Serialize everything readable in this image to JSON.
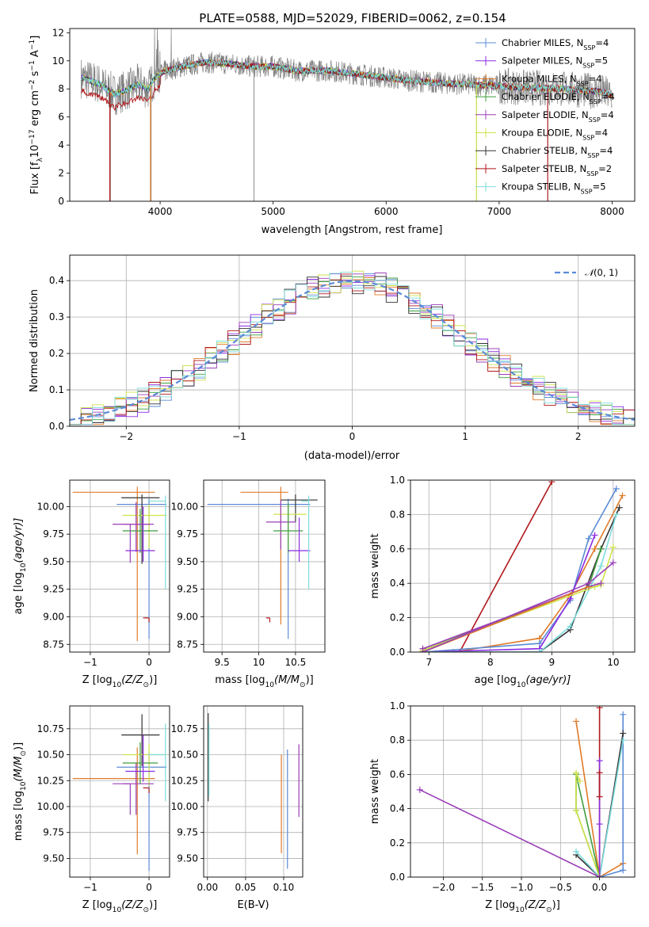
{
  "title": "PLATE=0588, MJD=52029, FIBERID=0062, z=0.154",
  "colors": {
    "Chabrier MILES": "#5b8bd6",
    "Salpeter MILES": "#8a2be2",
    "Kroupa MILES": "#e07b28",
    "Chabrier ELODIE": "#3e9e3e",
    "Salpeter ELODIE": "#9b3fb8",
    "Kroupa ELODIE": "#cfe34a",
    "Chabrier STELIB": "#333333",
    "Salpeter STELIB": "#b0181c",
    "Kroupa STELIB": "#7fdcdc",
    "data": "#808080",
    "normal": "#5b8bd6"
  },
  "chart_data": [
    {
      "id": "spectrum",
      "type": "line",
      "xlabel": "wavelength [Angstrom, rest frame]",
      "ylabel_parts": {
        "a": "Flux [f",
        "b": "λ",
        "c": "10",
        "d": "−17",
        "e": " erg cm",
        "f": "−2",
        "g": " s",
        "h": "−1",
        "i": " A",
        "j": "−1",
        "k": "]"
      },
      "xlim": [
        3200,
        8200
      ],
      "ylim": [
        0,
        12.3
      ],
      "xticks": [
        4000,
        5000,
        6000,
        7000,
        8000
      ],
      "yticks": [
        0,
        2,
        4,
        6,
        8,
        10,
        12
      ],
      "legend": [
        {
          "name": "Chabrier MILES",
          "nssp": "4"
        },
        {
          "name": "Salpeter MILES",
          "nssp": "5"
        },
        {
          "name": "Kroupa MILES",
          "nssp": "4"
        },
        {
          "name": "Chabrier ELODIE",
          "nssp": "4"
        },
        {
          "name": "Salpeter ELODIE",
          "nssp": "4"
        },
        {
          "name": "Kroupa ELODIE",
          "nssp": "4"
        },
        {
          "name": "Chabrier STELIB",
          "nssp": "4"
        },
        {
          "name": "Salpeter STELIB",
          "nssp": "2"
        },
        {
          "name": "Kroupa STELIB",
          "nssp": "5"
        }
      ],
      "legend_nssp_prefix": "N",
      "legend_nssp_sub": "SSP",
      "legend_eq": "=",
      "continuum": [
        [
          3300,
          8.8
        ],
        [
          3450,
          8.4
        ],
        [
          3600,
          7.6
        ],
        [
          3700,
          7.9
        ],
        [
          3800,
          8.3
        ],
        [
          3900,
          8.0
        ],
        [
          3950,
          8.8
        ],
        [
          4050,
          9.3
        ],
        [
          4200,
          9.6
        ],
        [
          4400,
          9.9
        ],
        [
          4600,
          9.8
        ],
        [
          4800,
          9.6
        ],
        [
          5000,
          9.6
        ],
        [
          5200,
          9.3
        ],
        [
          5500,
          9.3
        ],
        [
          5800,
          9.0
        ],
        [
          6200,
          8.6
        ],
        [
          6500,
          8.4
        ],
        [
          6800,
          8.3
        ],
        [
          7200,
          8.1
        ],
        [
          7600,
          8.0
        ],
        [
          7900,
          7.8
        ],
        [
          8000,
          7.5
        ]
      ]
    },
    {
      "id": "residuals",
      "type": "step",
      "xlabel": "(data-model)/error",
      "ylabel": "Normed distribution",
      "xlim": [
        -2.5,
        2.5
      ],
      "ylim": [
        0,
        0.47
      ],
      "xticks": [
        -2,
        -1,
        0,
        1,
        2
      ],
      "yticks": [
        0.0,
        0.1,
        0.2,
        0.3,
        0.4
      ],
      "legend": "N(0,1)",
      "legend_parts": {
        "a": "𝒩",
        "b": "(0, 1)"
      },
      "bin_width": 0.1
    },
    {
      "id": "age-Z",
      "type": "errorbar",
      "xlabel_parts": {
        "a": "Z [log",
        "b": "10",
        "c": "(Z/Z",
        "d": "⊙",
        "e": ")]"
      },
      "ylabel_parts": {
        "a": "age  [log",
        "b": "10",
        "c": "(age/yr)]"
      },
      "xlim": [
        -1.35,
        0.35
      ],
      "ylim": [
        8.68,
        10.24
      ],
      "xticks": [
        -1,
        0
      ],
      "yticks": [
        8.75,
        9.0,
        9.25,
        9.5,
        9.75,
        10.0
      ],
      "points": [
        {
          "model": "Kroupa MILES",
          "x": -0.2,
          "xerr": [
            1.1,
            0.3
          ],
          "y": 10.13,
          "yerr": [
            1.35,
            0.05
          ]
        },
        {
          "model": "Chabrier MILES",
          "x": 0.0,
          "xerr": [
            0.55,
            0.3
          ],
          "y": 10.02,
          "yerr": [
            1.22,
            0.05
          ]
        },
        {
          "model": "Chabrier STELIB",
          "x": -0.12,
          "xerr": [
            0.35,
            0.3
          ],
          "y": 10.08,
          "yerr": [
            0.6,
            0.03
          ]
        },
        {
          "model": "Kroupa ELODIE",
          "x": 0.0,
          "xerr": [
            0.45,
            0.3
          ],
          "y": 9.92,
          "yerr": [
            0.3,
            0.1
          ]
        },
        {
          "model": "Salpeter ELODIE",
          "x": -0.22,
          "xerr": [
            0.22,
            0.3
          ],
          "y": 9.84,
          "yerr": [
            0.25,
            0.2
          ]
        },
        {
          "model": "Chabrier ELODIE",
          "x": -0.15,
          "xerr": [
            0.3,
            0.3
          ],
          "y": 9.78,
          "yerr": [
            0.2,
            0.2
          ]
        },
        {
          "model": "Salpeter MILES",
          "x": -0.1,
          "xerr": [
            0.3,
            0.2
          ],
          "y": 9.6,
          "yerr": [
            0.1,
            0.4
          ]
        },
        {
          "model": "Kroupa STELIB",
          "x": 0.28,
          "xerr": [
            0.3,
            0.0
          ],
          "y": 10.05,
          "yerr": [
            0.8,
            0.05
          ]
        },
        {
          "model": "Salpeter STELIB",
          "x": 0.0,
          "xerr": [
            0.1,
            0.0
          ],
          "y": 8.99,
          "yerr": [
            0.04,
            0.0
          ]
        },
        {
          "model": "Salpeter ELODIE",
          "x": -0.32,
          "xerr": [
            0.3,
            0.3
          ],
          "y": 9.84,
          "yerr": [
            0.35,
            0.0
          ]
        }
      ]
    },
    {
      "id": "age-mass",
      "type": "errorbar",
      "xlabel_parts": {
        "a": "mass [log",
        "b": "10",
        "c": "(M/M",
        "d": "⊙",
        "e": ")]"
      },
      "xlim": [
        9.25,
        10.9
      ],
      "ylim": [
        8.68,
        10.24
      ],
      "xticks": [
        9.5,
        10.0,
        10.5
      ],
      "yticks": [
        8.75,
        9.0,
        9.25,
        9.5,
        9.75,
        10.0
      ],
      "points": [
        {
          "model": "Kroupa MILES",
          "x": 10.3,
          "xerr": [
            0.55,
            0.1
          ],
          "y": 10.13,
          "yerr": [
            1.2,
            0.05
          ]
        },
        {
          "model": "Chabrier MILES",
          "x": 10.4,
          "xerr": [
            1.1,
            0.3
          ],
          "y": 10.02,
          "yerr": [
            1.22,
            0.05
          ]
        },
        {
          "model": "Chabrier STELIB",
          "x": 10.5,
          "xerr": [
            0.2,
            0.3
          ],
          "y": 10.06,
          "yerr": [
            0.2,
            0.05
          ]
        },
        {
          "model": "Kroupa ELODIE",
          "x": 10.4,
          "xerr": [
            0.2,
            0.25
          ],
          "y": 9.93,
          "yerr": [
            0.3,
            0.1
          ]
        },
        {
          "model": "Salpeter ELODIE",
          "x": 10.3,
          "xerr": [
            0.2,
            0.2
          ],
          "y": 9.86,
          "yerr": [
            0.25,
            0.2
          ]
        },
        {
          "model": "Chabrier ELODIE",
          "x": 10.4,
          "xerr": [
            0.2,
            0.2
          ],
          "y": 9.78,
          "yerr": [
            0.2,
            0.25
          ]
        },
        {
          "model": "Salpeter MILES",
          "x": 10.55,
          "xerr": [
            0.15,
            0.15
          ],
          "y": 9.6,
          "yerr": [
            0.1,
            0.3
          ]
        },
        {
          "model": "Kroupa STELIB",
          "x": 10.68,
          "xerr": [
            0.1,
            0.0
          ],
          "y": 10.05,
          "yerr": [
            0.8,
            0.05
          ]
        },
        {
          "model": "Salpeter STELIB",
          "x": 10.15,
          "xerr": [
            0.05,
            0.0
          ],
          "y": 8.99,
          "yerr": [
            0.04,
            0.0
          ]
        }
      ]
    },
    {
      "id": "weight-age",
      "type": "line",
      "xlabel_parts": {
        "a": "age  [log",
        "b": "10",
        "c": "(age/yr)]"
      },
      "ylabel": "mass weight",
      "xlim": [
        6.7,
        10.35
      ],
      "ylim": [
        0,
        1.0
      ],
      "xticks": [
        7,
        8,
        9,
        10
      ],
      "yticks": [
        0.0,
        0.2,
        0.4,
        0.6,
        0.8,
        1.0
      ],
      "series": [
        {
          "model": "Salpeter STELIB",
          "x": [
            7.5,
            9.0
          ],
          "y": [
            0.0,
            0.99
          ]
        },
        {
          "model": "Kroupa MILES",
          "x": [
            6.9,
            7.4,
            8.8,
            9.3,
            9.7,
            10.15
          ],
          "y": [
            0.0,
            0.0,
            0.08,
            0.33,
            0.6,
            0.91
          ]
        },
        {
          "model": "Chabrier MILES",
          "x": [
            6.9,
            8.8,
            9.3,
            9.6,
            10.05
          ],
          "y": [
            0.0,
            0.05,
            0.3,
            0.66,
            0.95
          ]
        },
        {
          "model": "Salpeter MILES",
          "x": [
            6.9,
            8.8,
            9.3,
            9.7
          ],
          "y": [
            0.0,
            0.02,
            0.31,
            0.68
          ]
        },
        {
          "model": "Chabrier STELIB",
          "x": [
            6.9,
            8.8,
            9.3,
            9.8,
            10.1
          ],
          "y": [
            0.0,
            0.0,
            0.13,
            0.6,
            0.84
          ]
        },
        {
          "model": "Kroupa STELIB",
          "x": [
            6.9,
            8.8,
            9.3,
            9.8,
            10.05
          ],
          "y": [
            0.0,
            0.0,
            0.15,
            0.5,
            0.8
          ]
        },
        {
          "model": "Chabrier ELODIE",
          "x": [
            6.9,
            9.6,
            9.8
          ],
          "y": [
            0.01,
            0.38,
            0.6
          ]
        },
        {
          "model": "Kroupa ELODIE",
          "x": [
            6.9,
            9.7,
            9.8,
            10.0
          ],
          "y": [
            0.01,
            0.38,
            0.39,
            0.61
          ]
        },
        {
          "model": "Salpeter ELODIE",
          "x": [
            6.9,
            9.6,
            9.8
          ],
          "y": [
            0.02,
            0.38,
            0.4
          ]
        },
        {
          "model": "Kroupa MILES",
          "x": [
            6.9,
            9.6
          ],
          "y": [
            0.0,
            0.38
          ]
        },
        {
          "model": "Salpeter ELODIE",
          "x": [
            6.9,
            9.6,
            10.0
          ],
          "y": [
            0.0,
            0.4,
            0.52
          ]
        }
      ]
    },
    {
      "id": "mass-Z",
      "type": "errorbar",
      "xlabel_parts": {
        "a": "Z [log",
        "b": "10",
        "c": "(Z/Z",
        "d": "⊙",
        "e": ")]"
      },
      "ylabel_parts": {
        "a": "mass [log",
        "b": "10",
        "c": "(M/M",
        "d": "⊙",
        "e": ")]"
      },
      "xlim": [
        -1.35,
        0.35
      ],
      "ylim": [
        9.32,
        10.97
      ],
      "xticks": [
        -1,
        0
      ],
      "yticks": [
        9.5,
        9.75,
        10.0,
        10.25,
        10.5,
        10.75
      ],
      "points": [
        {
          "model": "Kroupa MILES",
          "x": -0.2,
          "xerr": [
            1.1,
            0.3
          ],
          "y": 10.27,
          "yerr": [
            0.73,
            0.3
          ]
        },
        {
          "model": "Chabrier MILES",
          "x": 0.0,
          "xerr": [
            0.55,
            0.3
          ],
          "y": 10.38,
          "yerr": [
            1.0,
            0.15
          ]
        },
        {
          "model": "Chabrier STELIB",
          "x": -0.12,
          "xerr": [
            0.35,
            0.3
          ],
          "y": 10.69,
          "yerr": [
            0.3,
            0.2
          ]
        },
        {
          "model": "Kroupa ELODIE",
          "x": 0.0,
          "xerr": [
            0.45,
            0.3
          ],
          "y": 10.5,
          "yerr": [
            0.3,
            0.1
          ]
        },
        {
          "model": "Salpeter ELODIE",
          "x": -0.22,
          "xerr": [
            0.22,
            0.3
          ],
          "y": 10.22,
          "yerr": [
            0.3,
            0.2
          ]
        },
        {
          "model": "Chabrier ELODIE",
          "x": -0.15,
          "xerr": [
            0.3,
            0.3
          ],
          "y": 10.42,
          "yerr": [
            0.2,
            0.2
          ]
        },
        {
          "model": "Salpeter MILES",
          "x": -0.1,
          "xerr": [
            0.3,
            0.2
          ],
          "y": 10.34,
          "yerr": [
            0.1,
            0.35
          ]
        },
        {
          "model": "Kroupa STELIB",
          "x": 0.28,
          "xerr": [
            0.3,
            0.0
          ],
          "y": 10.5,
          "yerr": [
            0.45,
            0.3
          ]
        },
        {
          "model": "Salpeter STELIB",
          "x": 0.0,
          "xerr": [
            0.1,
            0.0
          ],
          "y": 10.18,
          "yerr": [
            0.05,
            0.0
          ]
        },
        {
          "model": "Salpeter ELODIE",
          "x": -0.32,
          "xerr": [
            0.3,
            0.0
          ],
          "y": 10.22,
          "yerr": [
            0.3,
            0.0
          ]
        }
      ]
    },
    {
      "id": "mass-EBV",
      "type": "errorbar",
      "xlabel": "E(B-V)",
      "xlim": [
        -0.005,
        0.125
      ],
      "ylim": [
        9.32,
        10.97
      ],
      "xticks": [
        0.0,
        0.05,
        0.1
      ],
      "xtick_labels": [
        "0.00",
        "0.05",
        "0.10"
      ],
      "yticks": [
        9.5,
        9.75,
        10.0,
        10.25,
        10.5,
        10.75
      ],
      "points": [
        {
          "model": "Chabrier STELIB",
          "x": 0.001,
          "y": 10.5,
          "yerr": [
            0.45,
            0.4
          ]
        },
        {
          "model": "Kroupa STELIB",
          "x": 0.002,
          "y": 10.5,
          "yerr": [
            0.4,
            0.3
          ]
        },
        {
          "model": "Kroupa MILES",
          "x": 0.097,
          "y": 10.0,
          "yerr": [
            0.45,
            0.5
          ]
        },
        {
          "model": "Chabrier MILES",
          "x": 0.105,
          "y": 9.95,
          "yerr": [
            0.55,
            0.6
          ]
        },
        {
          "model": "Salpeter ELODIE",
          "x": 0.12,
          "y": 10.25,
          "yerr": [
            0.35,
            0.35
          ]
        }
      ]
    },
    {
      "id": "weight-Z",
      "type": "line",
      "xlabel_parts": {
        "a": "Z [log",
        "b": "10",
        "c": "(Z/Z",
        "d": "⊙",
        "e": ")]"
      },
      "ylabel": "mass weight",
      "xlim": [
        -2.42,
        0.45
      ],
      "ylim": [
        0,
        1.0
      ],
      "xticks": [
        -2.0,
        -1.5,
        -1.0,
        -0.5,
        0.0
      ],
      "xtick_labels": [
        "−2.0",
        "−1.5",
        "−1.0",
        "−0.5",
        "0.0"
      ],
      "yticks": [
        0.0,
        0.2,
        0.4,
        0.6,
        0.8,
        1.0
      ],
      "series": [
        {
          "model": "Salpeter STELIB",
          "x": [
            0.0,
            0.0
          ],
          "y": [
            0.0,
            0.99
          ]
        },
        {
          "model": "Kroupa MILES",
          "x": [
            0.0,
            -0.3,
            0.0,
            0.3
          ],
          "y": [
            0.0,
            0.91,
            0.0,
            0.08
          ]
        },
        {
          "model": "Chabrier MILES",
          "x": [
            0.0,
            0.3,
            0.3
          ],
          "y": [
            0.0,
            0.04,
            0.95
          ]
        },
        {
          "model": "Chabrier STELIB",
          "x": [
            0.0,
            0.3,
            0.0,
            -0.3
          ],
          "y": [
            0.0,
            0.84,
            0.0,
            0.13
          ]
        },
        {
          "model": "Kroupa STELIB",
          "x": [
            0.0,
            0.3,
            0.0,
            -0.3
          ],
          "y": [
            0.0,
            0.8,
            0.0,
            0.15
          ]
        },
        {
          "model": "Chabrier ELODIE",
          "x": [
            0.0,
            -0.3,
            -0.3,
            0.0
          ],
          "y": [
            0.0,
            0.39,
            0.6,
            0.0
          ]
        },
        {
          "model": "Kroupa ELODIE",
          "x": [
            0.0,
            -0.3,
            -0.3,
            -0.25
          ],
          "y": [
            0.0,
            0.39,
            0.61,
            0.56
          ]
        },
        {
          "model": "Salpeter MILES",
          "x": [
            0.0,
            0.0,
            0.0
          ],
          "y": [
            0.0,
            0.31,
            0.68
          ]
        },
        {
          "model": "Salpeter ELODIE",
          "x": [
            0.0,
            -2.3
          ],
          "y": [
            0.0,
            0.51
          ]
        },
        {
          "model": "Salpeter STELIB",
          "x": [
            0.0,
            0.0
          ],
          "y": [
            0.47,
            0.61
          ]
        }
      ]
    }
  ]
}
